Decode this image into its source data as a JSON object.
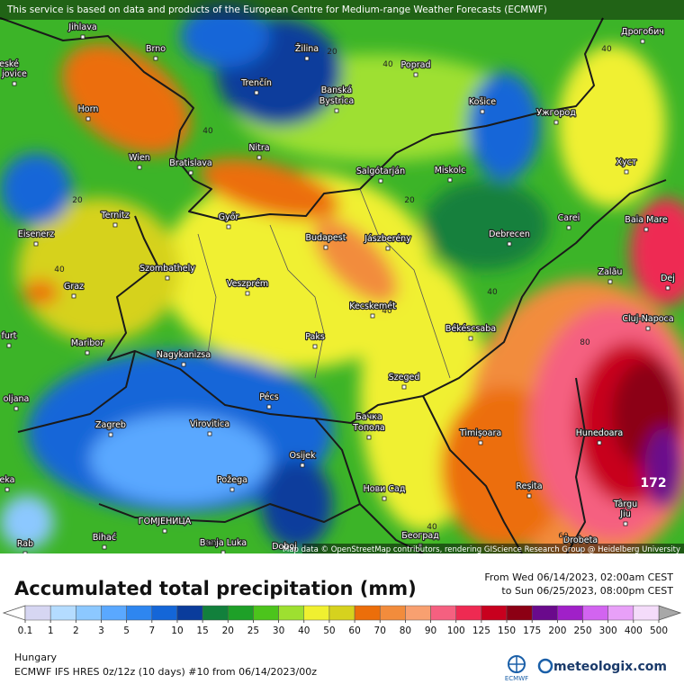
{
  "notice": "This service is based on data and products of the European Centre for Medium-range Weather Forecasts (ECMWF)",
  "attribution": "Map data © OpenStreetMap contributors, rendering GIScience Research Group @ Heidelberg University",
  "cities": [
    "Jihlava",
    "Brno",
    "Žilina",
    "Poprad",
    "Дрогобич",
    "Trenčín",
    "Banská",
    "Bystrica",
    "Košice",
    "Ужгород",
    "Horn",
    "Nitra",
    "Wien",
    "Bratislava",
    "Salgótarján",
    "Miskolc",
    "Хуст",
    "Ternitz",
    "Győr",
    "Carei",
    "Baia Mare",
    "Eisenerz",
    "Budapest",
    "Jászberény",
    "Debrecen",
    "Szombathely",
    "Zalău",
    "Graz",
    "Veszprém",
    "Dej",
    "Kecskemét",
    "Cluj-Napoca",
    "Maribor",
    "Paks",
    "Békéscsaba",
    "Nagykanizsa",
    "Szeged",
    "Pécs",
    "oljana",
    "Zagreb",
    "Virovitica",
    "Бачка",
    "Топола",
    "Timișoara",
    "Hunedoara",
    "Osijek",
    "Požega",
    "Нови Сад",
    "Reșita",
    "Târgu",
    "Jiu",
    "ГОМЈЕНИЦА",
    "Bihać",
    "Banja Luka",
    "Doboj",
    "Београд",
    "Drobeta",
    "Rab",
    "eské",
    "jovice",
    "furt",
    "eka"
  ],
  "contour_labels": [
    20,
    40,
    40,
    20,
    20,
    40,
    40,
    40,
    80,
    60,
    40,
    40,
    40
  ],
  "max_label": 172,
  "title": "Accumulated total precipitation (mm)",
  "period_from": "From Wed 06/14/2023, 02:00am CEST",
  "period_to": "to Sun 06/25/2023, 08:00pm CEST",
  "legend": {
    "ticks": [
      0.1,
      1,
      2,
      3,
      5,
      7,
      10,
      15,
      20,
      25,
      30,
      40,
      50,
      60,
      70,
      80,
      90,
      100,
      125,
      150,
      175,
      200,
      250,
      300,
      400,
      500
    ],
    "colors": [
      "#d6d6f2",
      "#b4dcff",
      "#8cc8ff",
      "#5aa8ff",
      "#2e86f0",
      "#1466d8",
      "#0a3c9c",
      "#12803c",
      "#1ea028",
      "#4cc41c",
      "#9ee030",
      "#f0f030",
      "#d6d21e",
      "#ec6e0a",
      "#f28c3c",
      "#f8a070",
      "#f56080",
      "#ee2a52",
      "#c8001e",
      "#8c0014",
      "#6a0a8c",
      "#a020c8",
      "#d264f0",
      "#e8a0f8",
      "#f4dcfa"
    ],
    "under_color": "#ffffff",
    "over_color": "#a8a8a8"
  },
  "region": "Hungary",
  "model": "ECMWF IFS HRES 0z/12z (10 days) #10 from  06/14/2023/00z",
  "ecmwf": "ECMWF",
  "brand": "meteologix.com"
}
